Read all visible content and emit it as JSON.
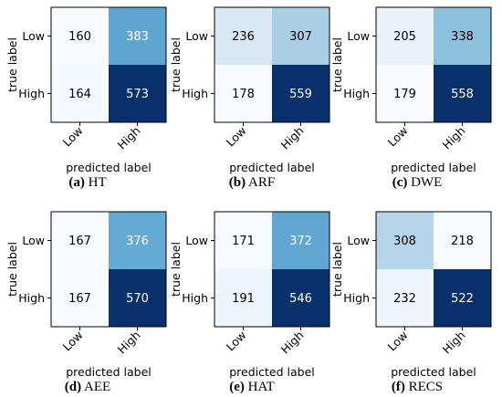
{
  "chart_data": [
    {
      "type": "heatmap",
      "caption_letter": "(a)",
      "caption_text": "HT",
      "xlabel": "predicted label",
      "ylabel": "true label",
      "x_categories": [
        "Low",
        "High"
      ],
      "y_categories": [
        "Low",
        "High"
      ],
      "values": [
        [
          160,
          383
        ],
        [
          164,
          573
        ]
      ]
    },
    {
      "type": "heatmap",
      "caption_letter": "(b)",
      "caption_text": "ARF",
      "xlabel": "predicted label",
      "ylabel": "true label",
      "x_categories": [
        "Low",
        "High"
      ],
      "y_categories": [
        "Low",
        "High"
      ],
      "values": [
        [
          236,
          307
        ],
        [
          178,
          559
        ]
      ]
    },
    {
      "type": "heatmap",
      "caption_letter": "(c)",
      "caption_text": "DWE",
      "xlabel": "predicted label",
      "ylabel": "true label",
      "x_categories": [
        "Low",
        "High"
      ],
      "y_categories": [
        "Low",
        "High"
      ],
      "values": [
        [
          205,
          338
        ],
        [
          179,
          558
        ]
      ]
    },
    {
      "type": "heatmap",
      "caption_letter": "(d)",
      "caption_text": "AEE",
      "xlabel": "predicted label",
      "ylabel": "true label",
      "x_categories": [
        "Low",
        "High"
      ],
      "y_categories": [
        "Low",
        "High"
      ],
      "values": [
        [
          167,
          376
        ],
        [
          167,
          570
        ]
      ]
    },
    {
      "type": "heatmap",
      "caption_letter": "(e)",
      "caption_text": "HAT",
      "xlabel": "predicted label",
      "ylabel": "true label",
      "x_categories": [
        "Low",
        "High"
      ],
      "y_categories": [
        "Low",
        "High"
      ],
      "values": [
        [
          171,
          372
        ],
        [
          191,
          546
        ]
      ]
    },
    {
      "type": "heatmap",
      "caption_letter": "(f)",
      "caption_text": "RECS",
      "xlabel": "predicted label",
      "ylabel": "true label",
      "x_categories": [
        "Low",
        "High"
      ],
      "y_categories": [
        "Low",
        "High"
      ],
      "values": [
        [
          308,
          218
        ],
        [
          232,
          522
        ]
      ]
    }
  ],
  "colors": {
    "colormap": "Blues",
    "cell_light": "#f7fbff",
    "cell_dark": "#08306b",
    "text_dark": "#000000",
    "text_light": "#ffffff",
    "frame": "#000000"
  }
}
